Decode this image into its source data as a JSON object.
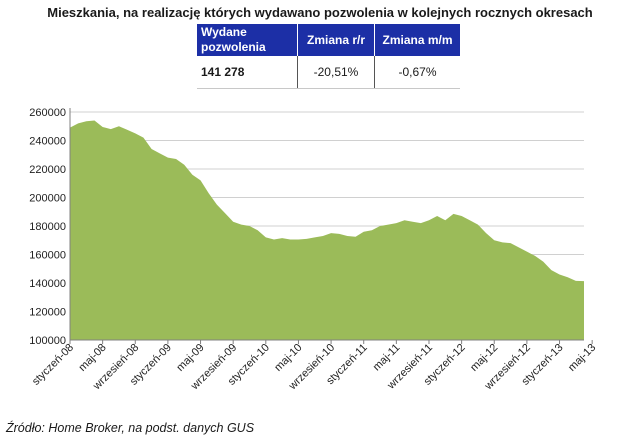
{
  "title": "Mieszkania, na realizację których wydawano pozwolenia w kolejnych rocznych okresach",
  "summary_table": {
    "headers": [
      "Wydane pozwolenia",
      "Zmiana r/r",
      "Zmiana m/m"
    ],
    "values": [
      "141 278",
      "-20,51%",
      "-0,67%"
    ],
    "header_color": "#1c2fa6"
  },
  "source": "Źródło: Home Broker, na podst. danych GUS",
  "chart_data": {
    "type": "area",
    "fill_color": "#9bbb59",
    "ylim": [
      100000,
      260000
    ],
    "yticks": [
      100000,
      120000,
      140000,
      160000,
      180000,
      200000,
      220000,
      240000,
      260000
    ],
    "ytick_labels": [
      "100000",
      "120000",
      "140000",
      "160000",
      "180000",
      "200000",
      "220000",
      "240000",
      "260000"
    ],
    "xtick_labels": [
      "styczeń-08",
      "maj-08",
      "wrzesień-08",
      "styczeń-09",
      "maj-09",
      "wrzesień-09",
      "styczeń-10",
      "maj-10",
      "wrzesień-10",
      "styczeń-11",
      "maj-11",
      "wrzesień-11",
      "styczeń-12",
      "maj-12",
      "wrzesień-12",
      "styczeń-13",
      "maj-13"
    ],
    "grid": true,
    "values": [
      249000,
      252000,
      253500,
      254000,
      249500,
      248000,
      250000,
      247500,
      245000,
      242000,
      234000,
      231000,
      228000,
      227000,
      223000,
      216000,
      212000,
      203000,
      195000,
      189000,
      183000,
      181000,
      180000,
      177000,
      172000,
      170500,
      171500,
      170500,
      170500,
      171000,
      172000,
      173000,
      175000,
      174500,
      173000,
      172500,
      176000,
      177000,
      180000,
      181000,
      182000,
      184000,
      183000,
      182000,
      184000,
      187000,
      184000,
      188500,
      187000,
      184000,
      181000,
      175000,
      170000,
      168500,
      168000,
      165000,
      162000,
      159000,
      155000,
      149000,
      146000,
      144000,
      141500,
      141278
    ]
  }
}
